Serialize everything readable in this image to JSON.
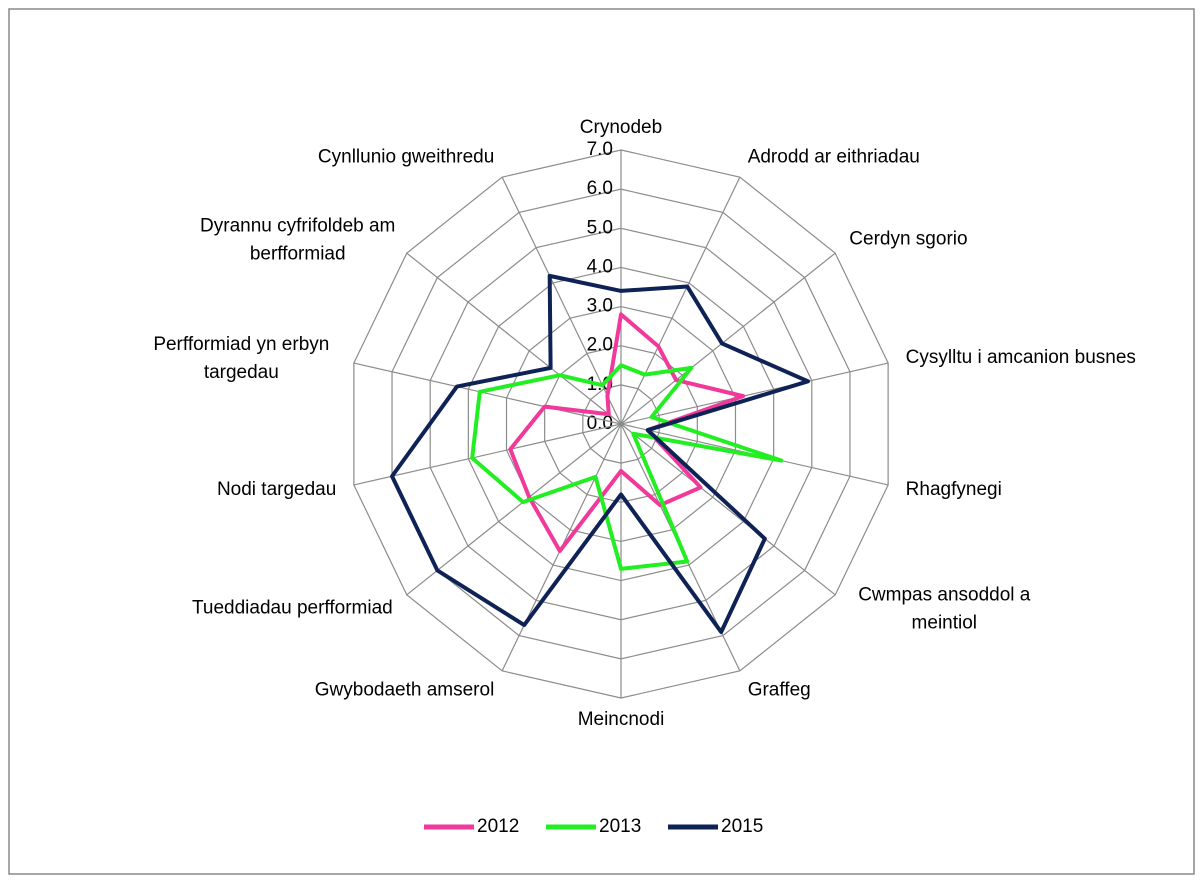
{
  "chart_data": {
    "type": "radar",
    "categories": [
      "Crynodeb",
      "Adrodd ar eithriadau",
      "Cerdyn sgorio",
      "Cysylltu i amcanion busnes",
      "Rhagfynegi",
      "Cwmpas ansoddol a meintiol",
      "Graffeg",
      "Meincnodi",
      "Gwybodaeth amserol",
      "Tueddiadau perfformiad",
      "Nodi targedau",
      "Perfformiad yn erbyn targedau",
      "Dyrannu cyfrifoldeb am berfformiad",
      "Cynllunio gweithredu"
    ],
    "series": [
      {
        "name": "2012",
        "color": "#f0399b",
        "values": [
          2.8,
          2.2,
          1.8,
          3.2,
          0.7,
          2.6,
          2.3,
          1.2,
          3.6,
          3.0,
          2.9,
          2.0,
          0.4,
          0.8
        ]
      },
      {
        "name": "2013",
        "color": "#22ee22",
        "values": [
          1.5,
          1.4,
          2.3,
          0.8,
          4.2,
          0.4,
          3.9,
          3.7,
          1.5,
          3.2,
          3.9,
          3.7,
          2.0,
          1.1
        ]
      },
      {
        "name": "2015",
        "color": "#0f2256",
        "values": [
          3.4,
          3.9,
          3.3,
          4.9,
          0.7,
          4.7,
          5.9,
          1.8,
          5.7,
          6.0,
          6.0,
          4.3,
          2.3,
          4.2
        ]
      }
    ],
    "ylim": [
      0,
      7
    ],
    "yticks": [
      {
        "value": 0,
        "label": "0.0"
      },
      {
        "value": 1,
        "label": "1.0"
      },
      {
        "value": 2,
        "label": "2.0"
      },
      {
        "value": 3,
        "label": "3.0"
      },
      {
        "value": 4,
        "label": "4.0"
      },
      {
        "value": 5,
        "label": "5.0"
      },
      {
        "value": 6,
        "label": "6.0"
      },
      {
        "value": 7,
        "label": "7.0"
      }
    ],
    "grid": true,
    "legend": "bottom"
  }
}
